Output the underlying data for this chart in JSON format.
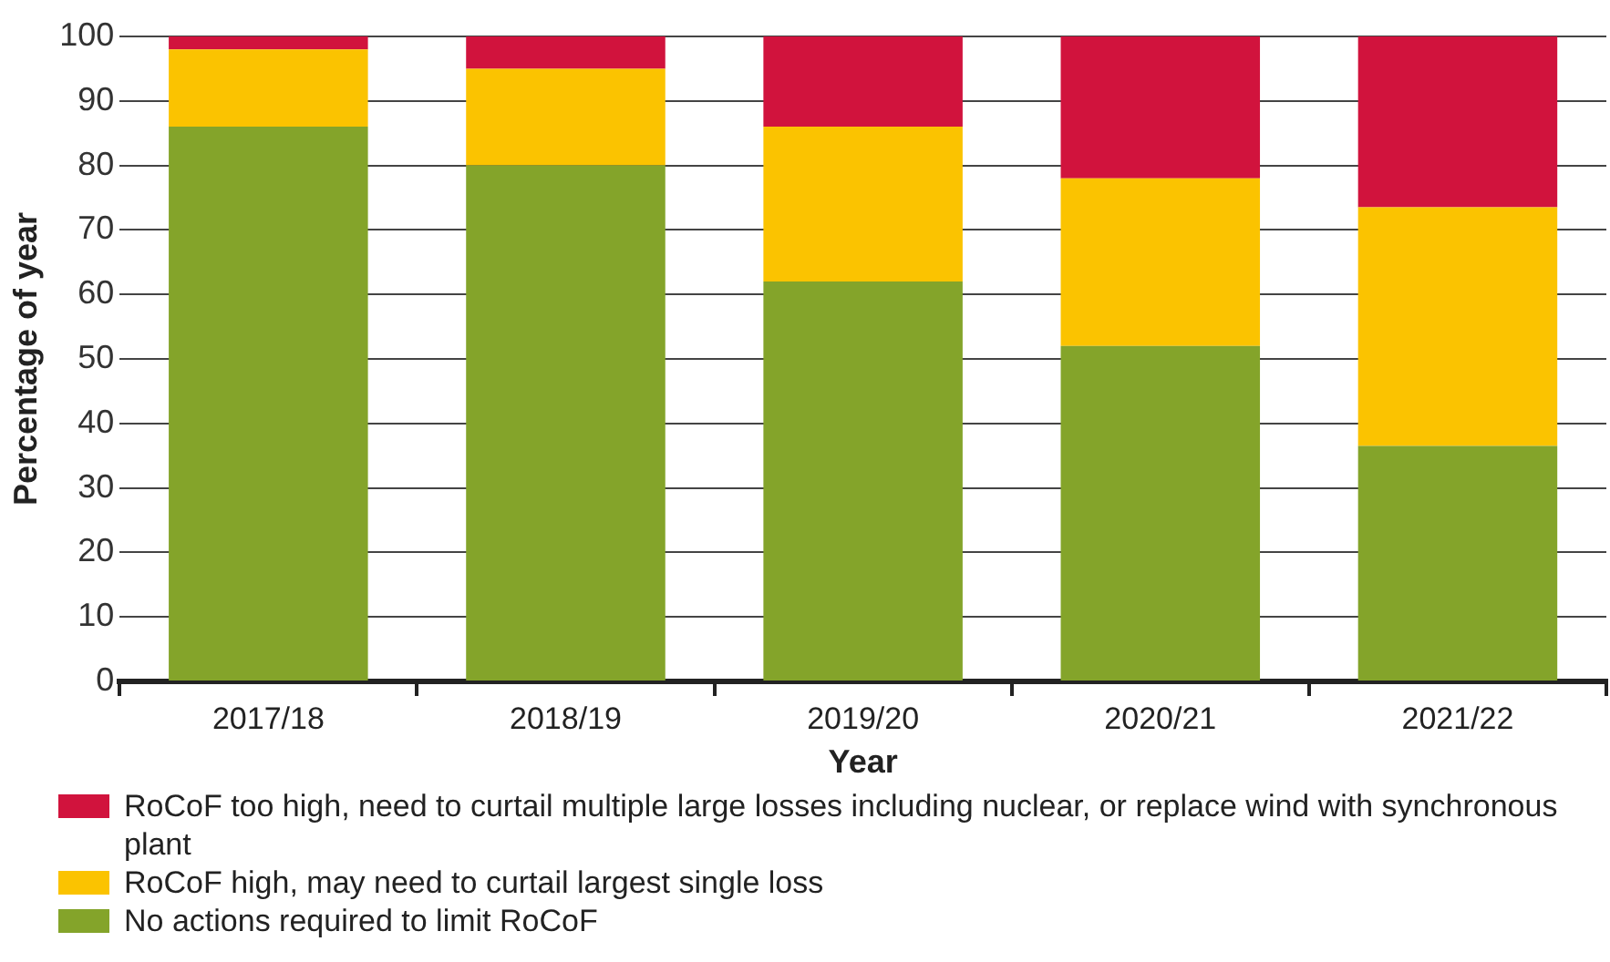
{
  "chart_data": {
    "type": "bar",
    "stacked": true,
    "xlabel": "Year",
    "ylabel": "Percentage of year",
    "categories": [
      "2017/18",
      "2018/19",
      "2019/20",
      "2020/21",
      "2021/22"
    ],
    "series": [
      {
        "name": "No actions required to limit RoCoF",
        "color": "#84a42a",
        "values": [
          86,
          80,
          62,
          52,
          36.5
        ]
      },
      {
        "name": "RoCoF high, may need to curtail largest single loss",
        "color": "#fbc300",
        "values": [
          12,
          15,
          24,
          26,
          37
        ]
      },
      {
        "name": "RoCoF too high, need to curtail multiple large losses including nuclear, or replace wind with synchronous plant",
        "color": "#d1133d",
        "values": [
          2,
          5,
          14,
          22,
          26.5
        ]
      }
    ],
    "ylim": [
      0,
      100
    ],
    "yticks": [
      0,
      10,
      20,
      30,
      40,
      50,
      60,
      70,
      80,
      90,
      100
    ],
    "grid": "y",
    "legend": "bottom"
  }
}
